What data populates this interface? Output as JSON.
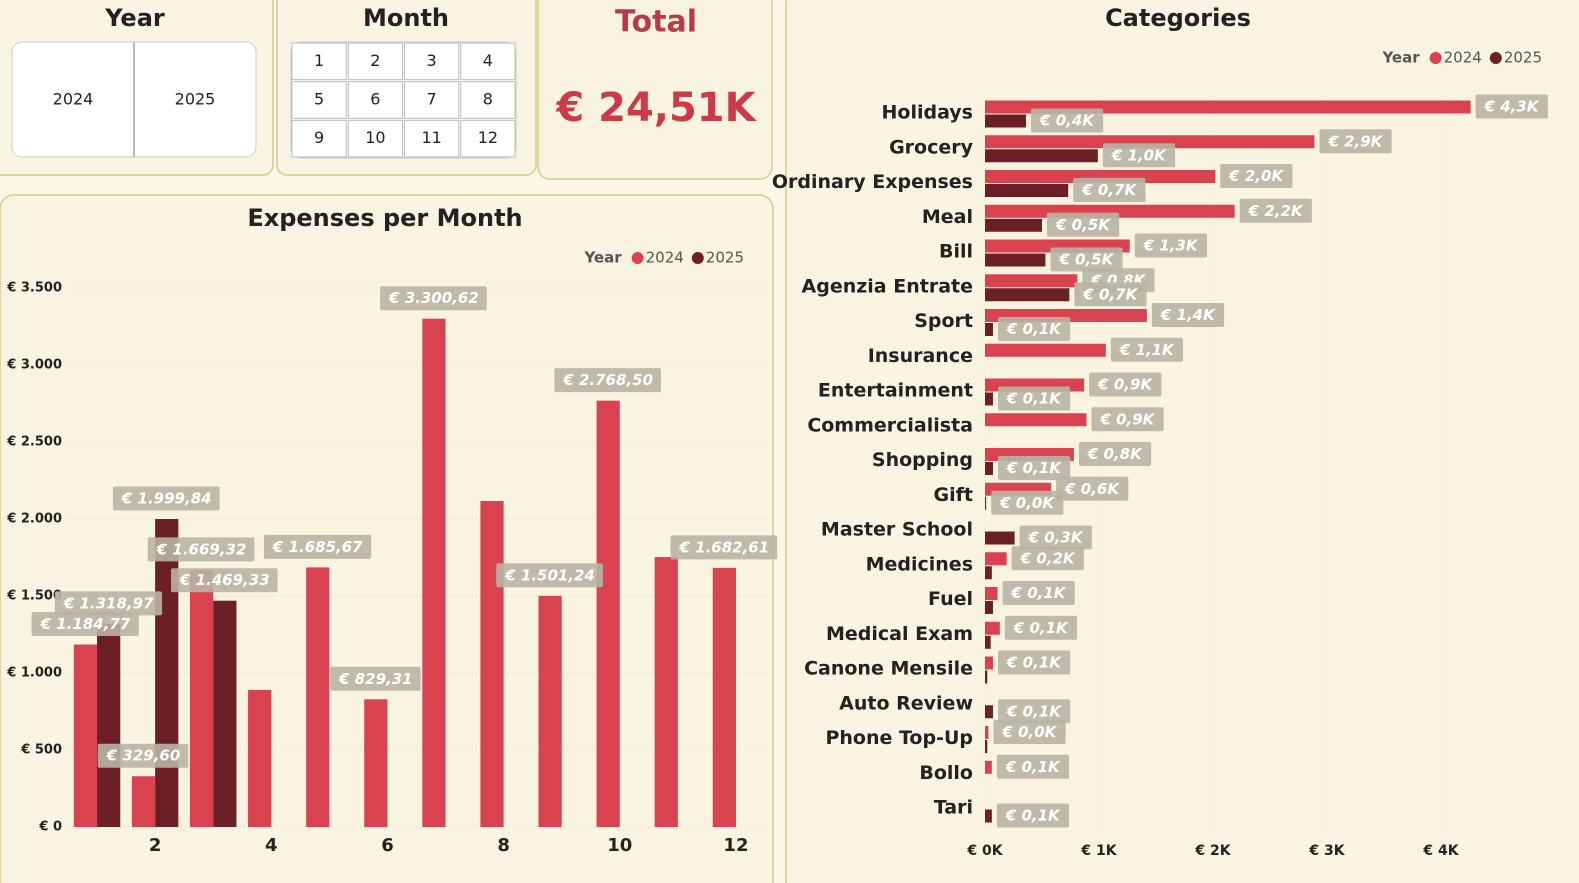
{
  "year_slicer": {
    "title": "Year",
    "options": [
      "2024",
      "2025"
    ]
  },
  "month_slicer": {
    "title": "Month",
    "options": [
      "1",
      "2",
      "3",
      "4",
      "5",
      "6",
      "7",
      "8",
      "9",
      "10",
      "11",
      "12"
    ]
  },
  "total_card": {
    "title": "Total",
    "value": "€ 24,51K"
  },
  "chart_data": [
    {
      "type": "bar",
      "title": "Expenses per Month",
      "legend_title": "Year",
      "legend_position": "top-right",
      "grid": true,
      "x": [
        1,
        2,
        3,
        4,
        5,
        6,
        7,
        8,
        9,
        10,
        11,
        12
      ],
      "xlim": [
        0.5,
        12.5
      ],
      "xticks": [
        2,
        4,
        6,
        8,
        10,
        12
      ],
      "ylim": [
        0,
        3500
      ],
      "yticks": [
        {
          "value": 0,
          "label": "€ 0"
        },
        {
          "value": 500,
          "label": "€ 500"
        },
        {
          "value": 1000,
          "label": "€ 1.000"
        },
        {
          "value": 1500,
          "label": "€ 1.500"
        },
        {
          "value": 2000,
          "label": "€ 2.000"
        },
        {
          "value": 2500,
          "label": "€ 2.500"
        },
        {
          "value": 3000,
          "label": "€ 3.000"
        },
        {
          "value": 3500,
          "label": "€ 3.500"
        }
      ],
      "series": [
        {
          "name": "2024",
          "color": "#d9434f",
          "values": [
            1184.77,
            329.6,
            1669.32,
            890,
            1685.67,
            829.31,
            3300.62,
            2117,
            1501.24,
            2768.5,
            1753,
            1682.61
          ],
          "value_labels": [
            "€ 1.184,77",
            "€ 329,60",
            "€ 1.669,32",
            null,
            "€ 1.685,67",
            "€ 829,31",
            "€ 3.300,62",
            null,
            "€ 1.501,24",
            "€ 2.768,50",
            null,
            "€ 1.682,61"
          ]
        },
        {
          "name": "2025",
          "color": "#6b1f27",
          "values": [
            1318.97,
            1999.84,
            1469.33,
            null,
            null,
            null,
            null,
            null,
            null,
            null,
            null,
            null
          ],
          "value_labels": [
            "€ 1.318,97",
            "€ 1.999,84",
            "€ 1.469,33",
            null,
            null,
            null,
            null,
            null,
            null,
            null,
            null,
            null
          ]
        }
      ]
    },
    {
      "type": "hbar",
      "title": "Categories",
      "legend_title": "Year",
      "legend_position": "top-right",
      "grid": true,
      "categories": [
        "Holidays",
        "Grocery",
        "Ordinary Expenses",
        "Meal",
        "Bill",
        "Agenzia Entrate",
        "Sport",
        "Insurance",
        "Entertainment",
        "Commercialista",
        "Shopping",
        "Gift",
        "Master School",
        "Medicines",
        "Fuel",
        "Medical Exam",
        "Canone Mensile",
        "Auto Review",
        "Phone Top-Up",
        "Bollo",
        "Tari"
      ],
      "xlim": [
        0,
        5
      ],
      "xticks": [
        {
          "value": 0,
          "label": "€ 0K"
        },
        {
          "value": 1,
          "label": "€ 1K"
        },
        {
          "value": 2,
          "label": "€ 2K"
        },
        {
          "value": 3,
          "label": "€ 3K"
        },
        {
          "value": 4,
          "label": "€ 4K"
        }
      ],
      "series": [
        {
          "name": "2024",
          "color": "#d9434f",
          "values": [
            4.26,
            2.89,
            2.02,
            2.19,
            1.27,
            0.81,
            1.42,
            1.06,
            0.87,
            0.89,
            0.78,
            0.58,
            null,
            0.19,
            0.11,
            0.13,
            0.07,
            null,
            0.03,
            0.06,
            null
          ],
          "value_labels": [
            "€ 4,3K",
            "€ 2,9K",
            "€ 2,0K",
            "€ 2,2K",
            "€ 1,3K",
            "€ 0,8K",
            "€ 1,4K",
            "€ 1,1K",
            "€ 0,9K",
            "€ 0,9K",
            "€ 0,8K",
            "€ 0,6K",
            null,
            "€ 0,2K",
            "€ 0,1K",
            "€ 0,1K",
            "€ 0,1K",
            null,
            "€ 0,0K",
            "€ 0,1K",
            null
          ]
        },
        {
          "name": "2025",
          "color": "#6b1f27",
          "values": [
            0.36,
            0.99,
            0.73,
            0.5,
            0.53,
            0.74,
            0.07,
            null,
            0.07,
            null,
            0.07,
            0.01,
            0.26,
            0.06,
            0.07,
            0.05,
            0.02,
            0.07,
            0.02,
            null,
            0.06
          ],
          "value_labels": [
            "€ 0,4K",
            "€ 1,0K",
            "€ 0,7K",
            "€ 0,5K",
            "€ 0,5K",
            "€ 0,7K",
            "€ 0,1K",
            null,
            "€ 0,1K",
            null,
            "€ 0,1K",
            "€ 0,0K",
            "€ 0,3K",
            null,
            null,
            null,
            null,
            "€ 0,1K",
            null,
            null,
            "€ 0,1K"
          ]
        }
      ]
    }
  ]
}
